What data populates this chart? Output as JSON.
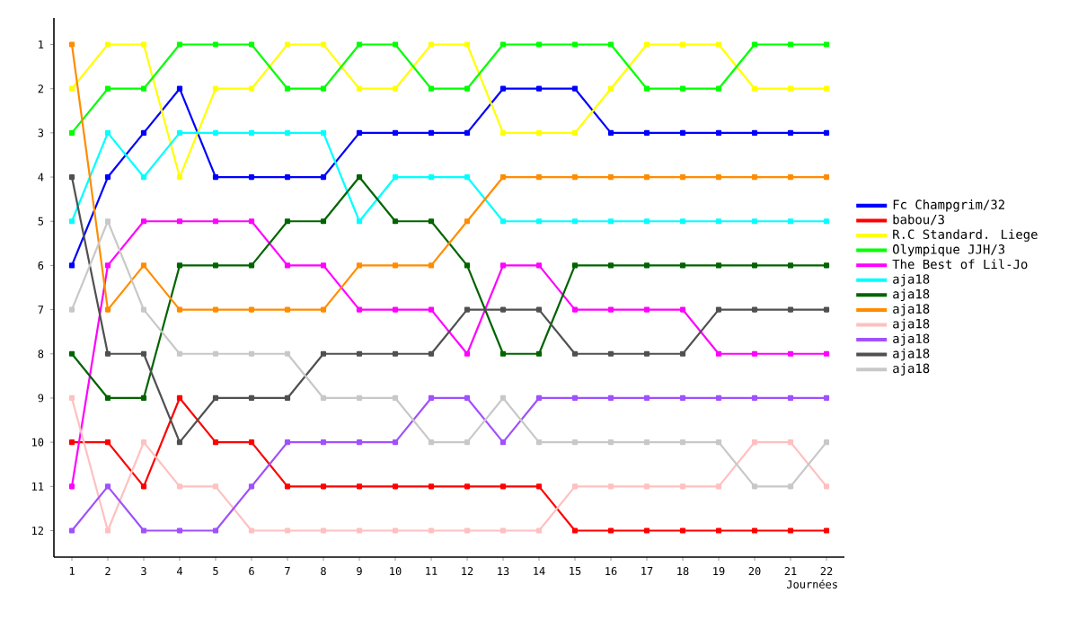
{
  "chart_data": {
    "type": "line",
    "xlabel": "Journées",
    "marker": "square",
    "line_style": "solid",
    "legend": "right",
    "xlim": [
      0.5,
      22.5
    ],
    "xticks": [
      1,
      2,
      3,
      4,
      5,
      6,
      7,
      8,
      9,
      10,
      11,
      12,
      13,
      14,
      15,
      16,
      17,
      18,
      19,
      20,
      21,
      22
    ],
    "ylim": [
      12.6,
      0.4
    ],
    "yticks": [
      1,
      2,
      3,
      4,
      5,
      6,
      7,
      8,
      9,
      10,
      11,
      12
    ],
    "x": [
      1,
      2,
      3,
      4,
      5,
      6,
      7,
      8,
      9,
      10,
      11,
      12,
      13,
      14,
      15,
      16,
      17,
      18,
      19,
      20,
      21,
      22
    ],
    "series": [
      {
        "name": "Fc Champgrim/32",
        "color": "#0000ff",
        "values": [
          6,
          4,
          3,
          2,
          4,
          4,
          4,
          4,
          3,
          3,
          3,
          3,
          2,
          2,
          2,
          3,
          3,
          3,
          3,
          3,
          3,
          3
        ]
      },
      {
        "name": "babou/3",
        "color": "#ff0000",
        "values": [
          10,
          10,
          11,
          9,
          10,
          10,
          11,
          11,
          11,
          11,
          11,
          11,
          11,
          11,
          12,
          12,
          12,
          12,
          12,
          12,
          12,
          12
        ]
      },
      {
        "name": "R.C Standard. Liege",
        "color": "#ffff00",
        "values": [
          2,
          1,
          1,
          4,
          2,
          2,
          1,
          1,
          2,
          2,
          1,
          1,
          3,
          3,
          3,
          2,
          1,
          1,
          1,
          2,
          2,
          2
        ]
      },
      {
        "name": "Olympique JJH/3",
        "color": "#00ff00",
        "values": [
          3,
          2,
          2,
          1,
          1,
          1,
          2,
          2,
          1,
          1,
          2,
          2,
          1,
          1,
          1,
          1,
          2,
          2,
          2,
          1,
          1,
          1
        ]
      },
      {
        "name": "The Best of Lil-Jo",
        "color": "#ff00ff",
        "values": [
          11,
          6,
          5,
          5,
          5,
          5,
          6,
          6,
          7,
          7,
          7,
          8,
          6,
          6,
          7,
          7,
          7,
          7,
          8,
          8,
          8,
          8
        ]
      },
      {
        "name": "aja18",
        "color": "#00ffff",
        "values": [
          5,
          3,
          4,
          3,
          3,
          3,
          3,
          3,
          5,
          4,
          4,
          4,
          5,
          5,
          5,
          5,
          5,
          5,
          5,
          5,
          5,
          5
        ]
      },
      {
        "name": "aja18",
        "color": "#006400",
        "values": [
          8,
          9,
          9,
          6,
          6,
          6,
          5,
          5,
          4,
          5,
          5,
          6,
          8,
          8,
          6,
          6,
          6,
          6,
          6,
          6,
          6,
          6
        ]
      },
      {
        "name": "aja18",
        "color": "#ff8c00",
        "values": [
          1,
          7,
          6,
          7,
          7,
          7,
          7,
          7,
          6,
          6,
          6,
          5,
          4,
          4,
          4,
          4,
          4,
          4,
          4,
          4,
          4,
          4
        ]
      },
      {
        "name": "aja18",
        "color": "#ffc0c0",
        "values": [
          9,
          12,
          10,
          11,
          11,
          12,
          12,
          12,
          12,
          12,
          12,
          12,
          12,
          12,
          11,
          11,
          11,
          11,
          11,
          10,
          10,
          11
        ]
      },
      {
        "name": "aja18",
        "color": "#a050ff",
        "values": [
          12,
          11,
          12,
          12,
          12,
          11,
          10,
          10,
          10,
          10,
          9,
          9,
          10,
          9,
          9,
          9,
          9,
          9,
          9,
          9,
          9,
          9
        ]
      },
      {
        "name": "aja18",
        "color": "#505050",
        "values": [
          4,
          8,
          8,
          10,
          9,
          9,
          9,
          8,
          8,
          8,
          8,
          7,
          7,
          7,
          8,
          8,
          8,
          8,
          7,
          7,
          7,
          7
        ]
      },
      {
        "name": "aja18",
        "color": "#c8c8c8",
        "values": [
          7,
          5,
          7,
          8,
          8,
          8,
          8,
          9,
          9,
          9,
          10,
          10,
          9,
          10,
          10,
          10,
          10,
          10,
          10,
          11,
          11,
          10
        ]
      }
    ]
  }
}
